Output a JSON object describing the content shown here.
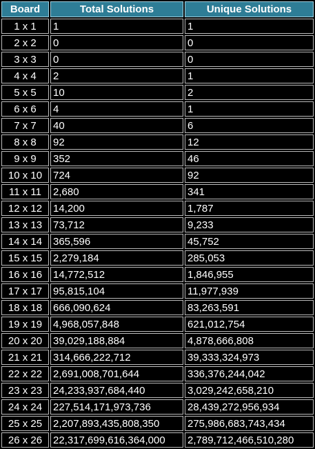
{
  "headers": {
    "board": "Board",
    "total": "Total Solutions",
    "unique": "Unique Solutions"
  },
  "colors": {
    "header_bg": "#2e7d96",
    "header_border": "#9fd0e0",
    "cell_bg": "#000000",
    "cell_border": "#bdbdbd",
    "text": "#ffffff"
  },
  "rows": [
    {
      "board": "1 x 1",
      "total": "1",
      "unique": "1"
    },
    {
      "board": "2 x 2",
      "total": "0",
      "unique": "0"
    },
    {
      "board": "3 x 3",
      "total": "0",
      "unique": "0"
    },
    {
      "board": "4 x 4",
      "total": "2",
      "unique": "1"
    },
    {
      "board": "5 x 5",
      "total": "10",
      "unique": "2"
    },
    {
      "board": "6 x 6",
      "total": "4",
      "unique": "1"
    },
    {
      "board": "7 x 7",
      "total": "40",
      "unique": "6"
    },
    {
      "board": "8 x 8",
      "total": "92",
      "unique": "12"
    },
    {
      "board": "9 x 9",
      "total": "352",
      "unique": "46"
    },
    {
      "board": "10 x 10",
      "total": "724",
      "unique": "92"
    },
    {
      "board": "11 x 11",
      "total": "2,680",
      "unique": "341"
    },
    {
      "board": "12 x 12",
      "total": "14,200",
      "unique": "1,787"
    },
    {
      "board": "13 x 13",
      "total": "73,712",
      "unique": "9,233"
    },
    {
      "board": "14 x 14",
      "total": "365,596",
      "unique": "45,752"
    },
    {
      "board": "15 x 15",
      "total": "2,279,184",
      "unique": "285,053"
    },
    {
      "board": "16 x 16",
      "total": "14,772,512",
      "unique": "1,846,955"
    },
    {
      "board": "17 x 17",
      "total": "95,815,104",
      "unique": "11,977,939"
    },
    {
      "board": "18 x 18",
      "total": "666,090,624",
      "unique": "83,263,591"
    },
    {
      "board": "19 x 19",
      "total": "4,968,057,848",
      "unique": "621,012,754"
    },
    {
      "board": "20 x 20",
      "total": "39,029,188,884",
      "unique": "4,878,666,808"
    },
    {
      "board": "21 x 21",
      "total": "314,666,222,712",
      "unique": "39,333,324,973"
    },
    {
      "board": "22 x 22",
      "total": "2,691,008,701,644",
      "unique": "336,376,244,042"
    },
    {
      "board": "23 x 23",
      "total": "24,233,937,684,440",
      "unique": "3,029,242,658,210"
    },
    {
      "board": "24 x 24",
      "total": "227,514,171,973,736",
      "unique": "28,439,272,956,934"
    },
    {
      "board": "25 x 25",
      "total": "2,207,893,435,808,350",
      "unique": "275,986,683,743,434"
    },
    {
      "board": "26 x 26",
      "total": "22,317,699,616,364,000",
      "unique": "2,789,712,466,510,280"
    }
  ]
}
